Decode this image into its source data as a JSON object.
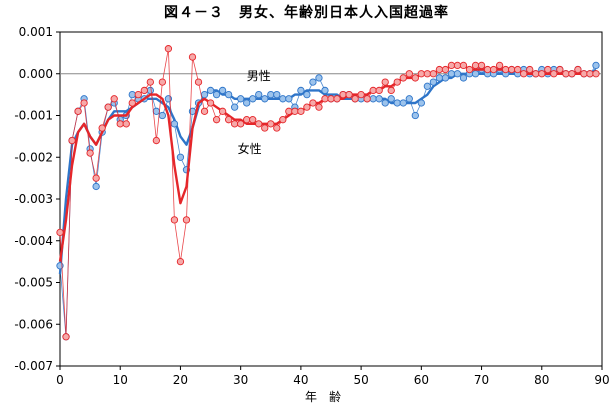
{
  "chart_data": {
    "type": "line",
    "title": "図４－３　男女、年齢別日本人入国超過率",
    "xlabel": "年　齢",
    "ylabel": "",
    "xlim": [
      0,
      90
    ],
    "ylim": [
      -0.007,
      0.001
    ],
    "x_ticks": [
      "0",
      "10",
      "20",
      "30",
      "40",
      "50",
      "60",
      "70",
      "80",
      "90"
    ],
    "y_ticks": [
      "0.001",
      "0.000",
      "-0.001",
      "-0.002",
      "-0.003",
      "-0.004",
      "-0.005",
      "-0.006",
      "-0.007"
    ],
    "grid": false,
    "reference_line": 0,
    "annotations": [
      {
        "text": "男性",
        "series": "男性"
      },
      {
        "text": "女性",
        "series": "女性"
      }
    ],
    "x": [
      0,
      1,
      2,
      3,
      4,
      5,
      6,
      7,
      8,
      9,
      10,
      11,
      12,
      13,
      14,
      15,
      16,
      17,
      18,
      19,
      20,
      21,
      22,
      23,
      24,
      25,
      26,
      27,
      28,
      29,
      30,
      31,
      32,
      33,
      34,
      35,
      36,
      37,
      38,
      39,
      40,
      41,
      42,
      43,
      44,
      45,
      46,
      47,
      48,
      49,
      50,
      51,
      52,
      53,
      54,
      55,
      56,
      57,
      58,
      59,
      60,
      61,
      62,
      63,
      64,
      65,
      66,
      67,
      68,
      69,
      70,
      71,
      72,
      73,
      74,
      75,
      76,
      77,
      78,
      79,
      80,
      81,
      82,
      83,
      84,
      85,
      86,
      87,
      88,
      89
    ],
    "series": [
      {
        "name": "男性",
        "color": "#2e75c9",
        "raw_values": [
          -0.0046,
          -0.0063,
          -0.0016,
          -0.0009,
          -0.0006,
          -0.0018,
          -0.0027,
          -0.0014,
          -0.0008,
          -0.0007,
          -0.0011,
          -0.001,
          -0.0005,
          -0.0006,
          -0.0006,
          -0.0004,
          -0.0009,
          -0.001,
          -0.0006,
          -0.0012,
          -0.002,
          -0.0023,
          -0.0009,
          -0.0007,
          -0.0005,
          -0.0004,
          -0.0005,
          -0.0004,
          -0.0005,
          -0.0008,
          -0.0006,
          -0.0007,
          -0.0006,
          -0.0005,
          -0.0006,
          -0.0005,
          -0.0005,
          -0.0006,
          -0.0006,
          -0.0008,
          -0.0004,
          -0.0005,
          -0.0002,
          -0.0001,
          -0.0004,
          -0.0006,
          -0.0006,
          -0.0005,
          -0.0005,
          -0.0006,
          -0.0006,
          -0.0006,
          -0.0006,
          -0.0006,
          -0.0007,
          -0.0006,
          -0.0007,
          -0.0007,
          -0.0006,
          -0.001,
          -0.0007,
          -0.0003,
          -0.0002,
          -0.0001,
          -0.0001,
          0.0,
          0.0,
          -0.0001,
          0.0,
          0.0,
          0.0001,
          0.0,
          0.0,
          0.0001,
          0.0,
          0.0001,
          0.0,
          0.0001,
          0.0,
          0.0,
          0.0001,
          0.0,
          0.0001,
          0.0001,
          0.0,
          0.0,
          0.0001,
          0.0,
          0.0,
          0.0002
        ],
        "smoothed_values": [
          -0.0048,
          -0.003,
          -0.0017,
          -0.0014,
          -0.0012,
          -0.0015,
          -0.0017,
          -0.0014,
          -0.0011,
          -0.0009,
          -0.0009,
          -0.0009,
          -0.0008,
          -0.0007,
          -0.0006,
          -0.0006,
          -0.0006,
          -0.0007,
          -0.0008,
          -0.0011,
          -0.0015,
          -0.0017,
          -0.0013,
          -0.0008,
          -0.0005,
          -0.0004,
          -0.0004,
          -0.0005,
          -0.0005,
          -0.0006,
          -0.0006,
          -0.0006,
          -0.0006,
          -0.0006,
          -0.0006,
          -0.0006,
          -0.0006,
          -0.0006,
          -0.0006,
          -0.0005,
          -0.0005,
          -0.0004,
          -0.0004,
          -0.0004,
          -0.0005,
          -0.0005,
          -0.0005,
          -0.0006,
          -0.0006,
          -0.0006,
          -0.0006,
          -0.0006,
          -0.0006,
          -0.0006,
          -0.0006,
          -0.0007,
          -0.0007,
          -0.0007,
          -0.0007,
          -0.0007,
          -0.0006,
          -0.0005,
          -0.0003,
          -0.0002,
          -0.0001,
          -0.0001,
          0.0,
          0.0,
          0.0,
          0.0,
          0.0,
          0.0,
          0.0,
          0.0,
          0.0,
          0.0,
          0.0,
          0.0,
          0.0,
          0.0,
          0.0,
          0.0,
          0.0,
          0.0,
          0.0,
          0.0,
          0.0,
          0.0,
          0.0,
          0.0001
        ]
      },
      {
        "name": "女性",
        "color": "#e5262a",
        "raw_values": [
          -0.0038,
          -0.0063,
          -0.0016,
          -0.0009,
          -0.0007,
          -0.0019,
          -0.0025,
          -0.0013,
          -0.0008,
          -0.0006,
          -0.0012,
          -0.0012,
          -0.0007,
          -0.0005,
          -0.0004,
          -0.0002,
          -0.0016,
          -0.0002,
          0.0006,
          -0.0035,
          -0.0045,
          -0.0035,
          0.0004,
          -0.0002,
          -0.0009,
          -0.0007,
          -0.0011,
          -0.0009,
          -0.0011,
          -0.0012,
          -0.0012,
          -0.0011,
          -0.0011,
          -0.0012,
          -0.0013,
          -0.0012,
          -0.0013,
          -0.0011,
          -0.0009,
          -0.0009,
          -0.0009,
          -0.0008,
          -0.0007,
          -0.0008,
          -0.0006,
          -0.0006,
          -0.0006,
          -0.0005,
          -0.0005,
          -0.0006,
          -0.0005,
          -0.0006,
          -0.0004,
          -0.0004,
          -0.0002,
          -0.0004,
          -0.0002,
          -0.0001,
          0.0,
          -0.0001,
          0.0,
          0.0,
          0.0,
          0.0001,
          0.0001,
          0.0002,
          0.0002,
          0.0002,
          0.0001,
          0.0002,
          0.0002,
          0.0001,
          0.0001,
          0.0002,
          0.0001,
          0.0001,
          0.0001,
          0.0,
          0.0001,
          0.0,
          0.0,
          0.0001,
          0.0,
          0.0001,
          0.0,
          0.0,
          0.0001,
          0.0,
          0.0,
          0.0
        ],
        "smoothed_values": [
          -0.0045,
          -0.0035,
          -0.0022,
          -0.0014,
          -0.0012,
          -0.0015,
          -0.0017,
          -0.0014,
          -0.0011,
          -0.001,
          -0.001,
          -0.001,
          -0.0008,
          -0.0007,
          -0.0006,
          -0.0005,
          -0.0005,
          -0.0006,
          -0.001,
          -0.0022,
          -0.0031,
          -0.0027,
          -0.0013,
          -0.0007,
          -0.0006,
          -0.0007,
          -0.0008,
          -0.0009,
          -0.001,
          -0.0011,
          -0.0011,
          -0.0012,
          -0.0012,
          -0.0012,
          -0.0012,
          -0.0012,
          -0.0012,
          -0.0011,
          -0.001,
          -0.0009,
          -0.0009,
          -0.0008,
          -0.0007,
          -0.0007,
          -0.0006,
          -0.0006,
          -0.0006,
          -0.0006,
          -0.0005,
          -0.0005,
          -0.0005,
          -0.0005,
          -0.0004,
          -0.0004,
          -0.0003,
          -0.0003,
          -0.0002,
          -0.0001,
          -0.0001,
          -0.0001,
          0.0,
          0.0,
          0.0,
          0.0001,
          0.0001,
          0.0002,
          0.0002,
          0.0002,
          0.0001,
          0.0001,
          0.0001,
          0.0001,
          0.0001,
          0.0001,
          0.0001,
          0.0001,
          0.0001,
          0.0,
          0.0,
          0.0,
          0.0,
          0.0,
          0.0,
          0.0,
          0.0,
          0.0,
          0.0,
          0.0,
          0.0,
          0.0
        ]
      }
    ]
  }
}
